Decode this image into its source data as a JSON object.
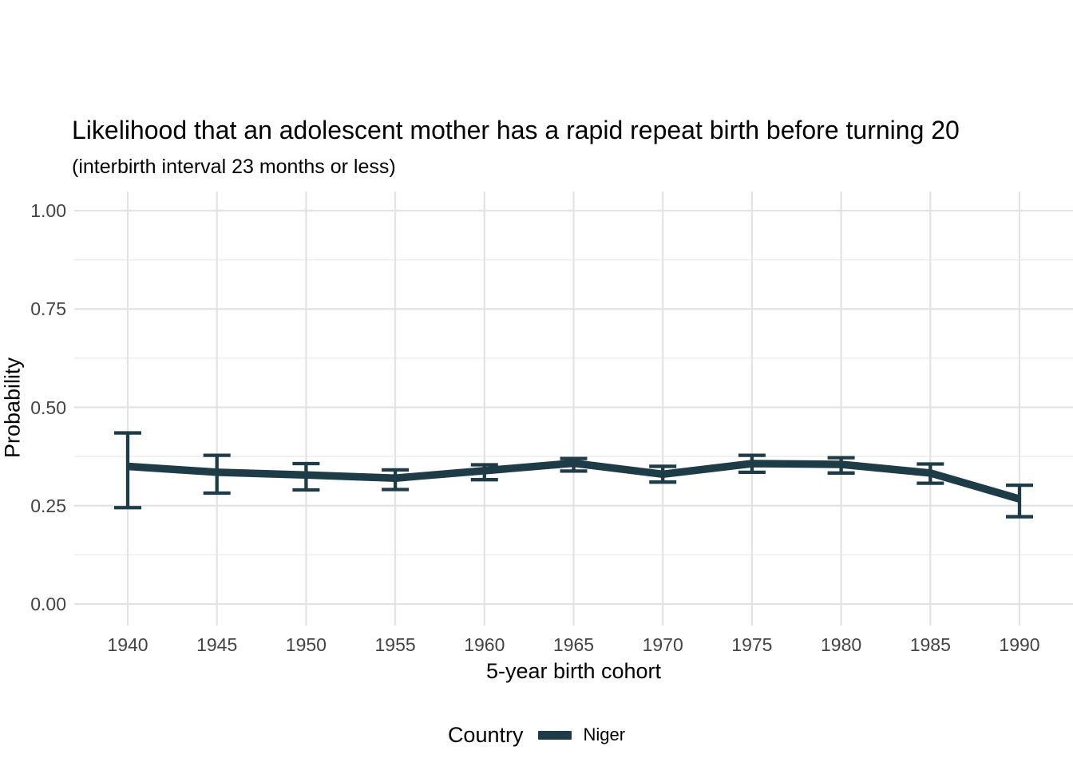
{
  "chart_data": {
    "type": "line",
    "title": "Likelihood that an adolescent mother has a rapid repeat birth before turning 20",
    "subtitle": "(interbirth interval 23 months or less)",
    "xlabel": "5-year birth cohort",
    "ylabel": "Probability",
    "legend_title": "Country",
    "legend_position": "bottom",
    "x": [
      1940,
      1945,
      1950,
      1955,
      1960,
      1965,
      1970,
      1975,
      1980,
      1985,
      1990
    ],
    "x_tick_labels": [
      "1940",
      "1945",
      "1950",
      "1955",
      "1960",
      "1965",
      "1970",
      "1975",
      "1980",
      "1985",
      "1990"
    ],
    "y_ticks": [
      {
        "label": "0.00",
        "value": 0.0
      },
      {
        "label": "0.25",
        "value": 0.25
      },
      {
        "label": "0.50",
        "value": 0.5
      },
      {
        "label": "0.75",
        "value": 0.75
      },
      {
        "label": "1.00",
        "value": 1.0
      }
    ],
    "y_minor_gridlines": [
      0.125,
      0.375,
      0.625,
      0.875
    ],
    "ylim": [
      0,
      1
    ],
    "grid": true,
    "error_bars": true,
    "series": [
      {
        "name": "Niger",
        "color": "#1e3c48",
        "values": [
          0.35,
          0.335,
          0.328,
          0.32,
          0.339,
          0.358,
          0.33,
          0.357,
          0.355,
          0.333,
          0.267
        ],
        "ci_lower": [
          0.245,
          0.282,
          0.29,
          0.291,
          0.316,
          0.338,
          0.31,
          0.335,
          0.333,
          0.307,
          0.222
        ],
        "ci_upper": [
          0.435,
          0.378,
          0.357,
          0.341,
          0.354,
          0.37,
          0.35,
          0.378,
          0.372,
          0.356,
          0.302
        ]
      }
    ],
    "colors": {
      "grid_major": "#e3e3e3",
      "grid_minor": "#eeeeee",
      "tick_text": "#444444",
      "title_text": "#000000"
    }
  }
}
